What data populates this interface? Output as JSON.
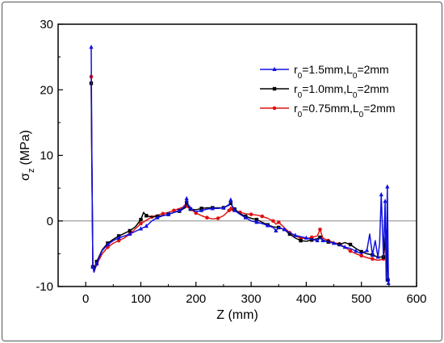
{
  "chart_data": {
    "type": "line",
    "title": "",
    "xlabel": "Z (mm)",
    "ylabel_main": "σ",
    "ylabel_sub": "z",
    "ylabel_unit": "(MPa)",
    "xlim": [
      -50,
      600
    ],
    "ylim": [
      -10,
      30
    ],
    "xticks": [
      0,
      100,
      200,
      300,
      400,
      500,
      600
    ],
    "yticks": [
      -10,
      0,
      10,
      20,
      30
    ],
    "zero_line": true,
    "legend_position": "top-right",
    "series": [
      {
        "name_parts": {
          "r": "r",
          "r_sub": "0",
          "r_val": "=1.5mm,L",
          "l_sub": "0",
          "l_val": "=2mm"
        },
        "color": "#1010e0",
        "marker": "triangle",
        "x": [
          10,
          11,
          13,
          15,
          20,
          30,
          40,
          50,
          60,
          70,
          80,
          90,
          100,
          105,
          110,
          120,
          130,
          140,
          150,
          160,
          170,
          180,
          183,
          186,
          190,
          200,
          210,
          220,
          230,
          240,
          250,
          260,
          263,
          266,
          270,
          280,
          290,
          300,
          310,
          320,
          330,
          340,
          345,
          350,
          360,
          370,
          380,
          390,
          400,
          410,
          420,
          425,
          430,
          440,
          450,
          460,
          470,
          480,
          490,
          500,
          510,
          515,
          520,
          525,
          530,
          533,
          536,
          540,
          543,
          545,
          547,
          548,
          549
        ],
        "y": [
          26.5,
          12.0,
          -7.0,
          -7.8,
          -6.5,
          -4.5,
          -3.6,
          -3.0,
          -2.6,
          -2.3,
          -2.0,
          -1.6,
          -1.2,
          -1.0,
          -0.8,
          0.0,
          0.5,
          0.8,
          1.0,
          1.3,
          1.6,
          2.2,
          3.4,
          2.4,
          1.9,
          1.4,
          1.6,
          1.8,
          1.9,
          1.9,
          2.0,
          2.5,
          3.2,
          2.2,
          1.6,
          1.0,
          0.5,
          0.0,
          -0.2,
          -0.4,
          -0.7,
          -1.0,
          -1.5,
          -1.0,
          -1.3,
          -1.8,
          -2.2,
          -2.4,
          -2.6,
          -2.8,
          -3.0,
          -2.6,
          -3.0,
          -3.2,
          -3.4,
          -3.7,
          -4.0,
          -4.2,
          -4.6,
          -5.0,
          -4.5,
          -2.0,
          -5.2,
          -3.0,
          -5.5,
          -3.5,
          4.0,
          -5.5,
          3.0,
          -9.2,
          5.2,
          -2.0,
          -9.5
        ]
      },
      {
        "name_parts": {
          "r": "r",
          "r_sub": "0",
          "r_val": "=1.0mm,L",
          "l_sub": "0",
          "l_val": "=2mm"
        },
        "color": "#000000",
        "marker": "square",
        "x": [
          10,
          11,
          13,
          15,
          20,
          30,
          40,
          50,
          60,
          70,
          80,
          90,
          100,
          105,
          110,
          120,
          130,
          140,
          150,
          160,
          170,
          180,
          183,
          186,
          190,
          200,
          210,
          220,
          230,
          240,
          250,
          260,
          263,
          266,
          270,
          280,
          290,
          300,
          310,
          320,
          330,
          340,
          350,
          360,
          370,
          380,
          390,
          400,
          410,
          420,
          425,
          430,
          440,
          450,
          460,
          470,
          480,
          490,
          500,
          510,
          520,
          530,
          540,
          545,
          548
        ],
        "y": [
          21.0,
          10.0,
          -7.0,
          -7.6,
          -6.2,
          -4.4,
          -3.4,
          -2.8,
          -2.3,
          -1.9,
          -1.5,
          -0.9,
          0.2,
          1.3,
          0.8,
          0.6,
          0.7,
          0.8,
          1.0,
          1.3,
          1.5,
          2.0,
          2.8,
          2.3,
          1.8,
          1.7,
          1.9,
          2.0,
          2.0,
          2.0,
          2.0,
          2.4,
          2.7,
          2.2,
          1.8,
          1.1,
          0.7,
          0.4,
          0.2,
          -0.2,
          -0.6,
          -0.9,
          -1.0,
          -1.3,
          -2.0,
          -2.6,
          -3.0,
          -3.1,
          -2.9,
          -2.7,
          -2.5,
          -2.9,
          -3.2,
          -3.4,
          -3.6,
          -3.3,
          -3.6,
          -4.2,
          -4.7,
          -5.0,
          -5.2,
          -5.5,
          -5.5,
          -1.5,
          -9.0
        ]
      },
      {
        "name_parts": {
          "r": "r",
          "r_sub": "0",
          "r_val": "=0.75mm,L",
          "l_sub": "0",
          "l_val": "=2mm"
        },
        "color": "#e01010",
        "marker": "circle",
        "x": [
          10,
          11,
          13,
          15,
          20,
          30,
          40,
          50,
          60,
          70,
          80,
          90,
          100,
          110,
          120,
          130,
          140,
          150,
          160,
          170,
          180,
          183,
          186,
          190,
          200,
          210,
          220,
          230,
          240,
          250,
          260,
          263,
          266,
          270,
          280,
          290,
          300,
          310,
          320,
          330,
          340,
          345,
          350,
          360,
          370,
          380,
          390,
          400,
          410,
          420,
          425,
          430,
          440,
          450,
          460,
          470,
          480,
          490,
          500,
          510,
          520,
          530,
          540,
          545,
          548
        ],
        "y": [
          22.0,
          11.0,
          -7.0,
          -7.8,
          -6.6,
          -5.0,
          -4.0,
          -3.4,
          -3.0,
          -2.6,
          -2.0,
          -1.2,
          -0.4,
          0.1,
          0.6,
          0.9,
          1.1,
          1.3,
          1.6,
          1.9,
          2.2,
          2.6,
          2.2,
          1.8,
          1.2,
          0.8,
          0.5,
          0.3,
          0.4,
          0.8,
          1.6,
          2.1,
          1.8,
          1.6,
          1.3,
          1.1,
          1.0,
          0.9,
          0.7,
          0.4,
          0.0,
          -0.5,
          -0.2,
          -1.0,
          -1.8,
          -2.3,
          -2.6,
          -2.7,
          -2.5,
          -2.3,
          -1.3,
          -2.6,
          -3.0,
          -3.3,
          -3.5,
          -4.0,
          -4.6,
          -5.0,
          -5.3,
          -5.6,
          -5.8,
          -6.0,
          -5.8,
          -2.0,
          -9.0
        ]
      }
    ]
  }
}
